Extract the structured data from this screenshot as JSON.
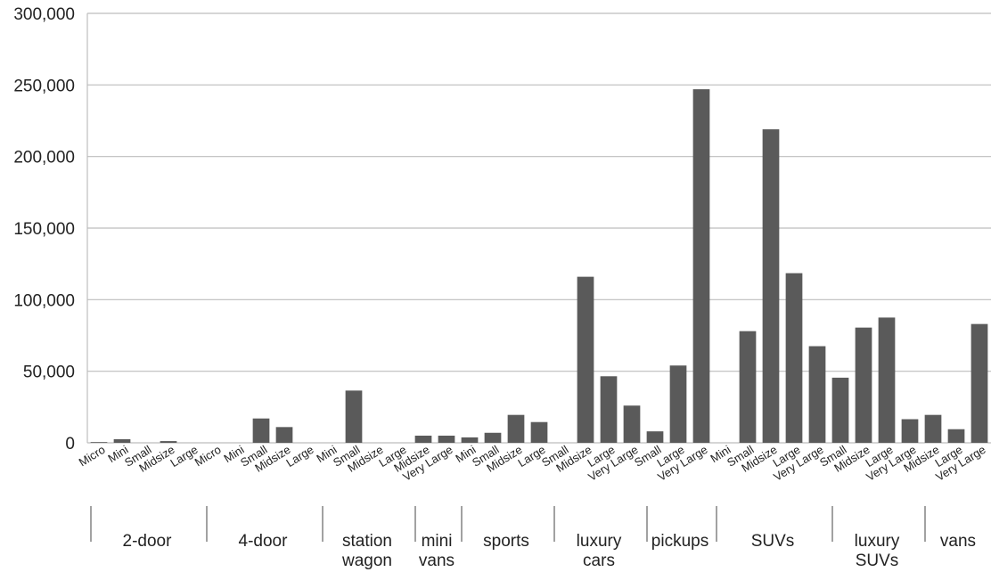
{
  "chart_data": {
    "type": "bar",
    "title": "",
    "xlabel": "",
    "ylabel": "",
    "ylim": [
      0,
      300000
    ],
    "y_ticks": [
      "0",
      "50,000",
      "100,000",
      "150,000",
      "200,000",
      "250,000",
      "300,000"
    ],
    "grid": true,
    "bar_color": "#5a5a5a",
    "grid_color": "#bdbdbd",
    "categories": [
      "Micro",
      "Mini",
      "Small",
      "Midsize",
      "Large",
      "Micro",
      "Mini",
      "Small",
      "Midsize",
      "Large",
      "Mini",
      "Small",
      "Midsize",
      "Large",
      "Midsize",
      "Very Large",
      "Mini",
      "Small",
      "Midsize",
      "Large",
      "Small",
      "Midsize",
      "Large",
      "Very Large",
      "Small",
      "Large",
      "Very Large",
      "Mini",
      "Small",
      "Midsize",
      "Large",
      "Very Large",
      "Small",
      "Midsize",
      "Large",
      "Very Large",
      "Midsize",
      "Large",
      "Very Large"
    ],
    "values": [
      500,
      2500,
      0,
      1200,
      0,
      0,
      0,
      17000,
      11000,
      0,
      0,
      36500,
      0,
      0,
      5000,
      5000,
      3800,
      7000,
      19500,
      14500,
      0,
      116000,
      46500,
      26000,
      8000,
      54000,
      247000,
      0,
      78000,
      219000,
      118500,
      67500,
      45500,
      80500,
      87500,
      16500,
      19500,
      9500,
      83000
    ],
    "groups": [
      {
        "label": "2-door",
        "count": 5
      },
      {
        "label": "4-door",
        "count": 5
      },
      {
        "label": "station wagon",
        "count": 4
      },
      {
        "label": "mini vans",
        "count": 2
      },
      {
        "label": "sports",
        "count": 4
      },
      {
        "label": "luxury cars",
        "count": 4
      },
      {
        "label": "pickups",
        "count": 3
      },
      {
        "label": "SUVs",
        "count": 5
      },
      {
        "label": "luxury SUVs",
        "count": 4
      },
      {
        "label": "vans",
        "count": 3
      }
    ]
  }
}
